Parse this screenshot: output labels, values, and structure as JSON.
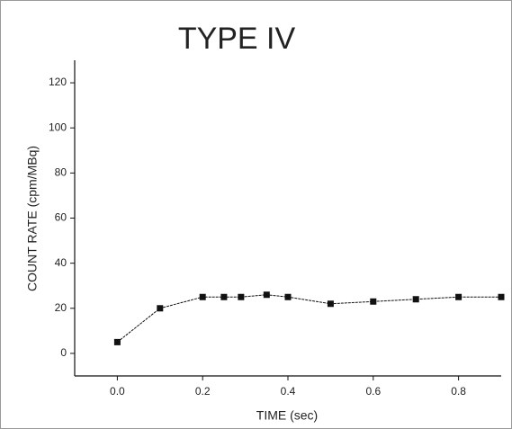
{
  "chart_data": {
    "type": "line",
    "title": "TYPE IV",
    "x_label": "TIME (sec)",
    "y_label": "COUNT RATE (cpm/MBq)",
    "series": [
      {
        "color": "#111111",
        "x": [
          0,
          0.1,
          0.2,
          0.25,
          0.29,
          0.35,
          0.4,
          0.5,
          0.6,
          0.7,
          0.8,
          0.9
        ],
        "values": [
          5,
          20,
          25,
          25,
          25,
          26,
          25,
          22,
          23,
          24,
          25,
          25
        ]
      }
    ],
    "xlim": [
      -0.1,
      0.9
    ],
    "ylim": [
      -10,
      130
    ],
    "xticks": [
      {
        "value": 0,
        "label": "0.0"
      },
      {
        "value": 0.2,
        "label": "0.2"
      },
      {
        "value": 0.4,
        "label": "0.4"
      },
      {
        "value": 0.6,
        "label": "0.6"
      },
      {
        "value": 0.8,
        "label": "0.8"
      }
    ],
    "yticks": [
      0,
      20,
      40,
      60,
      80,
      100,
      120
    ]
  }
}
